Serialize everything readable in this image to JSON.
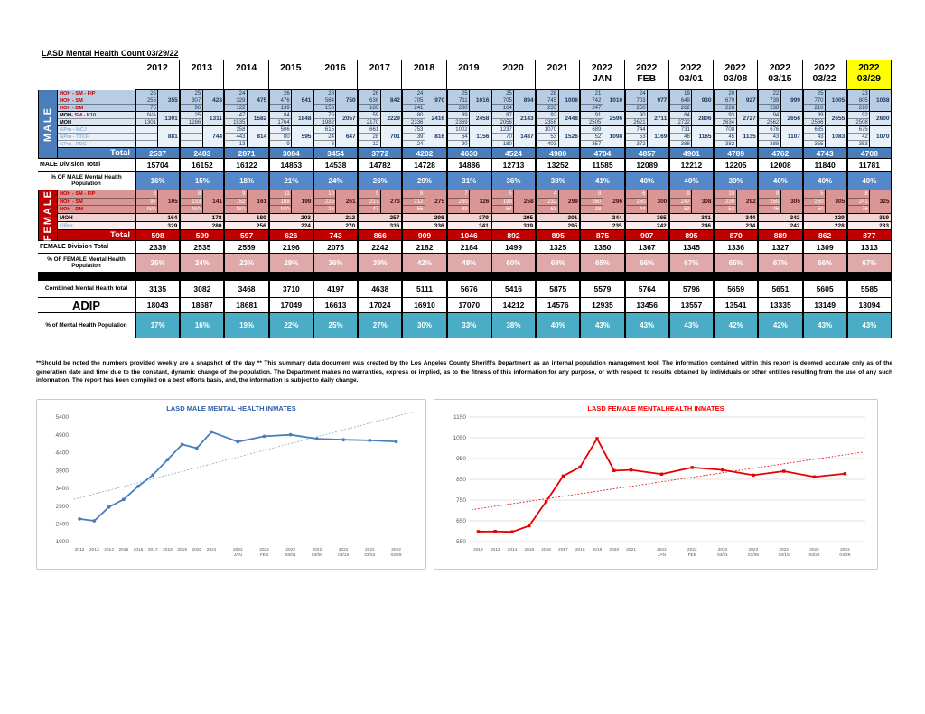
{
  "title": "LASD Mental Health Count 03/29/22",
  "table": {
    "columns": [
      {
        "y": "2012"
      },
      {
        "y": "2013"
      },
      {
        "y": "2014"
      },
      {
        "y": "2015"
      },
      {
        "y": "2016"
      },
      {
        "y": "2017"
      },
      {
        "y": "2018"
      },
      {
        "y": "2019"
      },
      {
        "y": "2020"
      },
      {
        "y": "2021"
      },
      {
        "y": "2022",
        "m": "JAN"
      },
      {
        "y": "2022",
        "m": "FEB"
      },
      {
        "y": "2022",
        "m": "03/01"
      },
      {
        "y": "2022",
        "m": "03/08"
      },
      {
        "y": "2022",
        "m": "03/15"
      },
      {
        "y": "2022",
        "m": "03/22"
      },
      {
        "y": "2022",
        "m": "03/29",
        "hl": true
      }
    ],
    "male": {
      "section": "MALE",
      "groups": [
        {
          "bg": "m-g0",
          "rows": [
            {
              "label": "HOH - SM - FIP",
              "lc": "red",
              "values": [
                "25",
                "25",
                "24",
                "26",
                "28",
                "26",
                "24",
                "25",
                "25",
                "28",
                "21",
                "24",
                "19",
                "20",
                "22",
                "25",
                "23"
              ]
            },
            {
              "label": "HOH - SM",
              "lc": "red",
              "values": [
                "255",
                "307",
                "329",
                "476",
                "564",
                "636",
                "705",
                "711",
                "705",
                "745",
                "742",
                "703",
                "649",
                "679",
                "739",
                "770",
                "805"
              ]
            },
            {
              "label": "HOH - DM",
              "lc": "red",
              "values": [
                "75",
                "96",
                "122",
                "139",
                "158",
                "180",
                "241",
                "280",
                "164",
                "233",
                "247",
                "250",
                "262",
                "228",
                "238",
                "210",
                "210"
              ]
            }
          ],
          "subtotals": [
            "355",
            "428",
            "475",
            "641",
            "750",
            "842",
            "970",
            "1016",
            "894",
            "1006",
            "1010",
            "977",
            "930",
            "927",
            "999",
            "1005",
            "1038"
          ]
        },
        {
          "bg": "m-g1",
          "rows": [
            {
              "label": "MOH ",
              "accent": "- SM - K10",
              "lc": "dark",
              "values": [
                "N/A",
                "25",
                "47",
                "84",
                "75",
                "59",
                "80",
                "89",
                "87",
                "92",
                "91",
                "90",
                "84",
                "93",
                "94",
                "89",
                "92"
              ]
            },
            {
              "label": "MOH",
              "lc": "dark",
              "values": [
                "1301",
                "1286",
                "1535",
                "1764",
                "1982",
                "2170",
                "2336",
                "2369",
                "2056",
                "2356",
                "2505",
                "2621",
                "2722",
                "2634",
                "2562",
                "2566",
                "2508"
              ]
            }
          ],
          "subtotals": [
            "1301",
            "1311",
            "1582",
            "1848",
            "2057",
            "2229",
            "2416",
            "2458",
            "2143",
            "2448",
            "2596",
            "2711",
            "2806",
            "2727",
            "2656",
            "2655",
            "2600"
          ]
        },
        {
          "bg": "m-g2",
          "rows": [
            {
              "label": "GPm - MCJ",
              "lc": "blue",
              "values": [
                "",
                "",
                "358",
                "506",
                "615",
                "661",
                "753",
                "1002",
                "1237",
                "1070",
                "689",
                "744",
                "731",
                "708",
                "676",
                "685",
                "675"
              ]
            },
            {
              "label": "GPm - TTCF",
              "lc": "blue",
              "values": [
                "",
                "",
                "443",
                "80",
                "24",
                "28",
                "39",
                "64",
                "70",
                "53",
                "52",
                "53",
                "46",
                "45",
                "43",
                "43",
                "42"
              ]
            },
            {
              "label": "GPm - PDC",
              "lc": "blue",
              "values": [
                "",
                "",
                "13",
                "9",
                "8",
                "12",
                "24",
                "90",
                "180",
                "403",
                "357",
                "372",
                "388",
                "382",
                "388",
                "355",
                "353"
              ]
            }
          ],
          "subtotals": [
            "881",
            "744",
            "814",
            "595",
            "647",
            "701",
            "816",
            "1156",
            "1487",
            "1526",
            "1098",
            "1169",
            "1165",
            "1135",
            "1107",
            "1083",
            "1070"
          ]
        }
      ],
      "total": {
        "label": "Total",
        "values": [
          "2537",
          "2483",
          "2871",
          "3084",
          "3454",
          "3772",
          "4202",
          "4630",
          "4524",
          "4980",
          "4704",
          "4857",
          "4901",
          "4789",
          "4762",
          "4743",
          "4708"
        ]
      },
      "division": {
        "label": "MALE Division Total",
        "values": [
          "15704",
          "16152",
          "16122",
          "14853",
          "14538",
          "14782",
          "14728",
          "14886",
          "12713",
          "13252",
          "11585",
          "12089",
          "12212",
          "12205",
          "12008",
          "11840",
          "11781"
        ]
      },
      "pct": {
        "label": "% OF MALE Mental Health Population",
        "values": [
          "16%",
          "15%",
          "18%",
          "21%",
          "24%",
          "26%",
          "29%",
          "31%",
          "36%",
          "38%",
          "41%",
          "40%",
          "40%",
          "39%",
          "40%",
          "40%",
          "40%"
        ]
      }
    },
    "female": {
      "section": "FEMALE",
      "groups": [
        {
          "bg": "f-g0",
          "rows": [
            {
              "label": "HOH - SM - FIP",
              "lc": "red",
              "values": [
                "8",
                "8",
                "9",
                "11",
                "10",
                "9",
                "8",
                "7",
                "5",
                "4",
                "8",
                "6",
                "9",
                "10",
                "9",
                "5",
                "8"
              ]
            },
            {
              "label": "HOH - SM",
              "lc": "red",
              "values": [
                "97",
                "133",
                "152",
                "188",
                "225",
                "217",
                "212",
                "230",
                "199",
                "232",
                "260",
                "250",
                "247",
                "230",
                "250",
                "250",
                "241"
              ]
            },
            {
              "label": "HOH - DM",
              "lc": "red",
              "values": [
                "N/A",
                "N/A",
                "N/A",
                "N/A",
                "26",
                "47",
                "55",
                "89",
                "54",
                "63",
                "28",
                "44",
                "52",
                "52",
                "46",
                "50",
                "76"
              ]
            }
          ],
          "subtotals": [
            "105",
            "141",
            "161",
            "199",
            "261",
            "273",
            "275",
            "326",
            "258",
            "299",
            "296",
            "300",
            "308",
            "292",
            "305",
            "305",
            "325"
          ]
        }
      ],
      "singles": [
        {
          "label": "MOH",
          "lc": "dark",
          "bg": "f-moh",
          "values": [
            "164",
            "178",
            "180",
            "203",
            "212",
            "257",
            "298",
            "379",
            "295",
            "301",
            "344",
            "365",
            "341",
            "344",
            "342",
            "329",
            "319"
          ]
        },
        {
          "label": "GPm",
          "lc": "blue",
          "bg": "f-gpm",
          "values": [
            "329",
            "280",
            "256",
            "224",
            "270",
            "336",
            "336",
            "341",
            "339",
            "295",
            "235",
            "242",
            "246",
            "234",
            "242",
            "228",
            "233"
          ]
        }
      ],
      "total": {
        "label": "Total",
        "values": [
          "598",
          "599",
          "597",
          "626",
          "743",
          "866",
          "909",
          "1046",
          "892",
          "895",
          "875",
          "907",
          "895",
          "870",
          "889",
          "862",
          "877"
        ]
      },
      "division": {
        "label": "FEMALE Division Total",
        "values": [
          "2339",
          "2535",
          "2559",
          "2196",
          "2075",
          "2242",
          "2182",
          "2184",
          "1499",
          "1325",
          "1350",
          "1367",
          "1345",
          "1336",
          "1327",
          "1309",
          "1313"
        ]
      },
      "pct": {
        "label": "% OF FEMALE Mental Health Population",
        "values": [
          "26%",
          "24%",
          "23%",
          "29%",
          "36%",
          "39%",
          "42%",
          "48%",
          "60%",
          "68%",
          "65%",
          "66%",
          "67%",
          "65%",
          "67%",
          "66%",
          "67%"
        ]
      }
    },
    "combined": {
      "label": "Combined Mental Health total",
      "values": [
        "3135",
        "3082",
        "3468",
        "3710",
        "4197",
        "4638",
        "5111",
        "5676",
        "5416",
        "5875",
        "5579",
        "5764",
        "5796",
        "5659",
        "5651",
        "5605",
        "5585"
      ]
    },
    "adip": {
      "label": "ADIP",
      "values": [
        "18043",
        "18687",
        "18681",
        "17049",
        "16613",
        "17024",
        "16910",
        "17070",
        "14212",
        "14576",
        "12935",
        "13456",
        "13557",
        "13541",
        "13335",
        "13149",
        "13094"
      ]
    },
    "pct_mh": {
      "label": "% of Mental Health Population",
      "values": [
        "17%",
        "16%",
        "19%",
        "22%",
        "25%",
        "27%",
        "30%",
        "33%",
        "38%",
        "40%",
        "43%",
        "43%",
        "43%",
        "42%",
        "42%",
        "43%",
        "43%"
      ]
    }
  },
  "disclaimer": "**Should be noted the numbers provided weekly are a snapshot of the day ** This summary data document was created by the Los Angeles County Sheriff's Department as an internal population management tool.  The information contained within this report is deemed accurate only as of the generation date and time due to the constant, dynamic change of the population.  The Department makes no warranties, express or implied, as to the fitness of this information for any purpose, or with respect to results obtained by individuals or other entities resulting from the use of any such information.  The report has been compiled on a best efforts basis, and, the information is subject to daily change.",
  "chart_data": [
    {
      "type": "line",
      "title": "LASD MALE MENTAL HEALTH INMATES",
      "title_color": "#2f5fa7",
      "color": "#4a7ebb",
      "trend_color": "#7fa3cf",
      "marker": "circle",
      "grid": false,
      "trendline": true,
      "legend": "none",
      "categories": [
        "2012",
        "2013",
        "2014",
        "2015",
        "2016",
        "2017",
        "2018",
        "2019",
        "2020",
        "2021",
        "2022 JAN",
        "2022 FEB",
        "2022 03/01",
        "2022 03/08",
        "2022 03/15",
        "2022 03/22",
        "2022 03/29"
      ],
      "values": [
        2537,
        2483,
        2871,
        3084,
        3454,
        3772,
        4202,
        4630,
        4524,
        4980,
        4704,
        4857,
        4901,
        4789,
        4762,
        4743,
        4708
      ],
      "ylim": [
        1900,
        5400
      ],
      "ystep": 500
    },
    {
      "type": "line",
      "title": "LASD FEMALE MENTALHEALTH INMATES",
      "title_color": "#ff0000",
      "color": "#e60000",
      "trend_color": "#e60000",
      "marker": "square",
      "grid": true,
      "trendline": true,
      "legend": "none",
      "categories": [
        "2012",
        "2013",
        "2014",
        "2015",
        "2016",
        "2017",
        "2018",
        "2019",
        "2020",
        "2021",
        "2022 JAN",
        "2022 FEB",
        "2022 03/01",
        "2022 03/08",
        "2022 03/15",
        "2022 03/22",
        "2022 03/29"
      ],
      "values": [
        598,
        599,
        597,
        626,
        743,
        866,
        909,
        1046,
        892,
        895,
        875,
        907,
        895,
        870,
        889,
        862,
        877
      ],
      "ylim": [
        550,
        1150
      ],
      "ystep": 100
    }
  ]
}
